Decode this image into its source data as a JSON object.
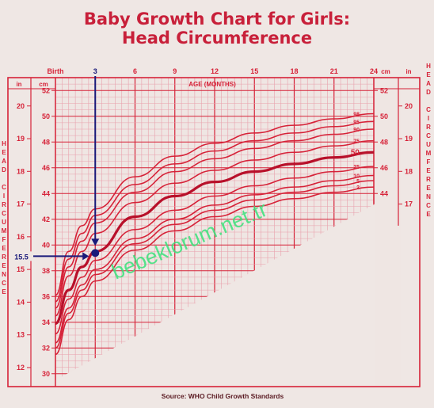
{
  "title_line1": "Baby Growth Chart for Girls:",
  "title_line2": "Head Circumference",
  "source": "Source: WHO Child Growth Standards",
  "watermark": "bebeklorum.net.tr",
  "colors": {
    "chart_red": "#d62238",
    "grid_light": "#e9a0ac",
    "marker_blue": "#1a1a7a",
    "watermark_green": "#39e07a",
    "background": "#efe7e4"
  },
  "chart_data": {
    "type": "line",
    "xlabel": "AGE (MONTHS)",
    "x_ticks": [
      {
        "x": 0,
        "label": "Birth"
      },
      {
        "x": 3,
        "label": "3"
      },
      {
        "x": 6,
        "label": "6"
      },
      {
        "x": 9,
        "label": "9"
      },
      {
        "x": 12,
        "label": "12"
      },
      {
        "x": 15,
        "label": "15"
      },
      {
        "x": 18,
        "label": "18"
      },
      {
        "x": 21,
        "label": "21"
      },
      {
        "x": 24,
        "label": "24"
      }
    ],
    "xlim": [
      0,
      24
    ],
    "ylabel_left": "HEAD CIRCUMFERENCE",
    "ylabel_right": "HEAD CIRCUMFERENCE",
    "y_unit_cm": "cm",
    "y_unit_in": "in",
    "ylim_cm": [
      29,
      53
    ],
    "cm_ticks_left": [
      30,
      32,
      34,
      36,
      38,
      40,
      42,
      44,
      46,
      48,
      50,
      52
    ],
    "in_ticks_left": [
      12,
      13,
      14,
      15,
      16,
      17,
      18,
      19,
      20
    ],
    "cm_ticks_right": [
      44,
      46,
      48,
      50,
      52
    ],
    "in_ticks_right": [
      17,
      18,
      19,
      20
    ],
    "percentile_labels": [
      "98",
      "95",
      "90",
      "75",
      "50",
      "25",
      "10",
      "5",
      "2"
    ],
    "series": [
      {
        "name": "98",
        "values": [
          [
            0,
            36.1
          ],
          [
            1,
            39.5
          ],
          [
            2,
            41.5
          ],
          [
            3,
            42.8
          ],
          [
            6,
            45.3
          ],
          [
            9,
            46.9
          ],
          [
            12,
            47.9
          ],
          [
            15,
            48.7
          ],
          [
            18,
            49.3
          ],
          [
            21,
            49.8
          ],
          [
            24,
            50.2
          ]
        ]
      },
      {
        "name": "95",
        "values": [
          [
            0,
            35.6
          ],
          [
            1,
            38.9
          ],
          [
            2,
            40.9
          ],
          [
            3,
            42.3
          ],
          [
            6,
            44.7
          ],
          [
            9,
            46.3
          ],
          [
            12,
            47.3
          ],
          [
            15,
            48.1
          ],
          [
            18,
            48.7
          ],
          [
            21,
            49.2
          ],
          [
            24,
            49.6
          ]
        ]
      },
      {
        "name": "90",
        "values": [
          [
            0,
            35.1
          ],
          [
            1,
            38.3
          ],
          [
            2,
            40.3
          ],
          [
            3,
            41.7
          ],
          [
            6,
            44.1
          ],
          [
            9,
            45.7
          ],
          [
            12,
            46.7
          ],
          [
            15,
            47.5
          ],
          [
            18,
            48.1
          ],
          [
            21,
            48.6
          ],
          [
            24,
            49.0
          ]
        ]
      },
      {
        "name": "75",
        "values": [
          [
            0,
            34.5
          ],
          [
            1,
            37.6
          ],
          [
            2,
            39.5
          ],
          [
            3,
            40.9
          ],
          [
            6,
            43.3
          ],
          [
            9,
            44.8
          ],
          [
            12,
            45.8
          ],
          [
            15,
            46.6
          ],
          [
            18,
            47.2
          ],
          [
            21,
            47.7
          ],
          [
            24,
            48.1
          ]
        ]
      },
      {
        "name": "50",
        "values": [
          [
            0,
            33.9
          ],
          [
            1,
            36.5
          ],
          [
            2,
            38.3
          ],
          [
            3,
            39.5
          ],
          [
            6,
            42.2
          ],
          [
            9,
            43.8
          ],
          [
            12,
            44.9
          ],
          [
            15,
            45.7
          ],
          [
            18,
            46.3
          ],
          [
            21,
            46.8
          ],
          [
            24,
            47.2
          ]
        ]
      },
      {
        "name": "25",
        "values": [
          [
            0,
            33.1
          ],
          [
            1,
            35.8
          ],
          [
            2,
            37.5
          ],
          [
            3,
            38.8
          ],
          [
            6,
            41.2
          ],
          [
            9,
            42.7
          ],
          [
            12,
            43.8
          ],
          [
            15,
            44.6
          ],
          [
            18,
            45.2
          ],
          [
            21,
            45.7
          ],
          [
            24,
            46.1
          ]
        ]
      },
      {
        "name": "10",
        "values": [
          [
            0,
            32.4
          ],
          [
            1,
            35.1
          ],
          [
            2,
            36.9
          ],
          [
            3,
            38.1
          ],
          [
            6,
            40.5
          ],
          [
            9,
            42.0
          ],
          [
            12,
            43.1
          ],
          [
            15,
            43.9
          ],
          [
            18,
            44.5
          ],
          [
            21,
            45.0
          ],
          [
            24,
            45.4
          ]
        ]
      },
      {
        "name": "5",
        "values": [
          [
            0,
            32.0
          ],
          [
            1,
            34.7
          ],
          [
            2,
            36.5
          ],
          [
            3,
            37.7
          ],
          [
            6,
            40.1
          ],
          [
            9,
            41.6
          ],
          [
            12,
            42.7
          ],
          [
            15,
            43.5
          ],
          [
            18,
            44.1
          ],
          [
            21,
            44.6
          ],
          [
            24,
            45.0
          ]
        ]
      },
      {
        "name": "2",
        "values": [
          [
            0,
            31.5
          ],
          [
            1,
            34.2
          ],
          [
            2,
            36.0
          ],
          [
            3,
            37.2
          ],
          [
            6,
            39.6
          ],
          [
            9,
            41.1
          ],
          [
            12,
            42.2
          ],
          [
            15,
            43.0
          ],
          [
            18,
            43.6
          ],
          [
            21,
            44.1
          ],
          [
            24,
            44.5
          ]
        ]
      }
    ],
    "highlighted_series": "50",
    "annotation": {
      "x": 3,
      "y_cm": 39.5,
      "y_label": "15.5"
    }
  }
}
